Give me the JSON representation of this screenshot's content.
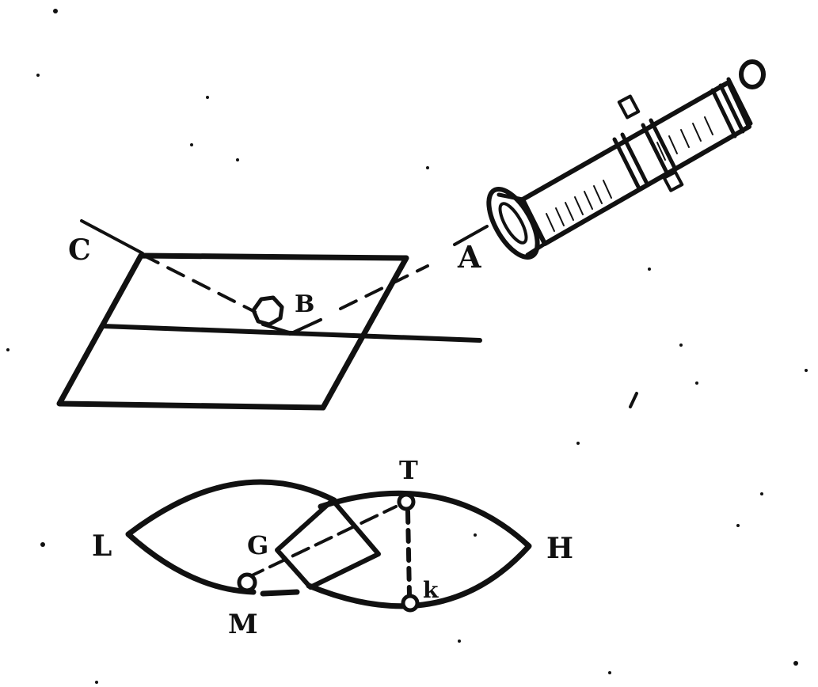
{
  "colors": {
    "ink": "#111111",
    "paper": "#ffffff"
  },
  "upper_figure": {
    "labels": {
      "c": "C",
      "a": "A",
      "b": "B"
    },
    "icons": [
      "cannon-icon",
      "ball-icon"
    ]
  },
  "lower_figure": {
    "labels": {
      "l": "L",
      "g": "G",
      "t": "T",
      "h": "H",
      "k": "k",
      "m": "M"
    }
  }
}
